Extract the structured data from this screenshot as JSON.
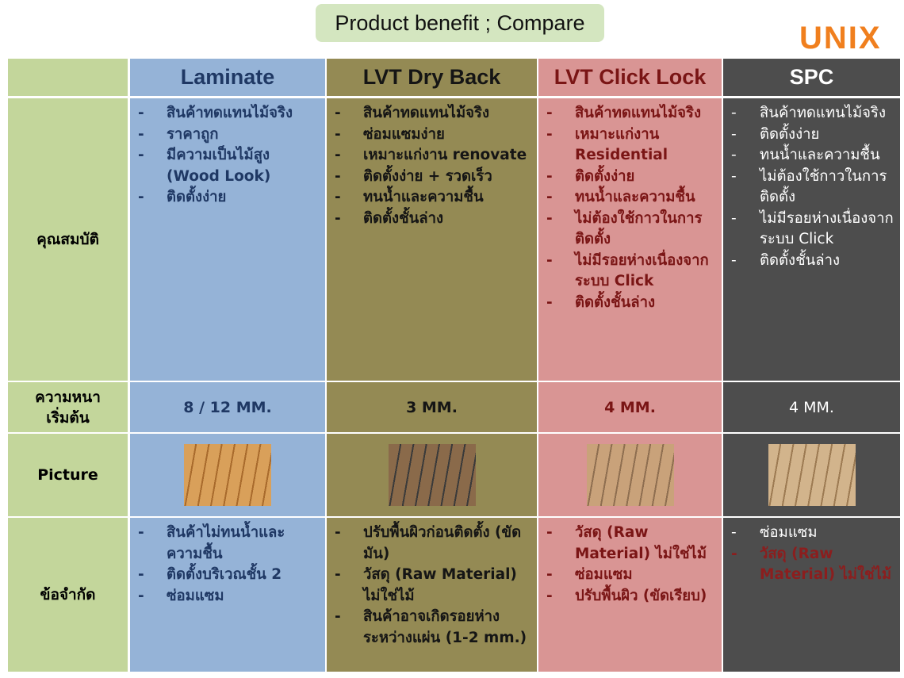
{
  "header": {
    "title": "Product benefit ; Compare",
    "logo": "UNIX"
  },
  "table": {
    "columns": [
      "Laminate",
      "LVT Dry Back",
      "LVT Click Lock",
      "SPC"
    ],
    "rows": [
      {
        "label": "คุณสมบัติ",
        "cells": [
          [
            "สินค้าทดแทนไม้จริง",
            "ราคาถูก",
            "มีความเป็นไม้สูง (Wood Look)",
            "ติดตั้งง่าย"
          ],
          [
            "สินค้าทดแทนไม้จริง",
            "ซ่อมแซมง่าย",
            "เหมาะแก่งาน renovate",
            "ติดตั้งง่าย + รวดเร็ว",
            "ทนน้ำและความชื้น",
            "ติดตั้งชั้นล่าง"
          ],
          [
            "สินค้าทดแทนไม้จริง",
            "เหมาะแก่งาน Residential",
            "ติดตั้งง่าย",
            "ทนน้ำและความชื้น",
            "ไม่ต้องใช้กาวในการติดตั้ง",
            "ไม่มีรอยห่างเนื่องจากระบบ Click",
            "ติดตั้งชั้นล่าง"
          ],
          [
            "สินค้าทดแทนไม้จริง",
            "ติดตั้งง่าย",
            "ทนน้ำและความชื้น",
            "ไม่ต้องใช้กาวในการติดตั้ง",
            "ไม่มีรอยห่างเนื่องจากระบบ Click",
            "ติดตั้งชั้นล่าง"
          ]
        ]
      },
      {
        "label": "ความหนา\nเริ่มต้น",
        "cells": [
          "8 / 12 MM.",
          "3 MM.",
          "4 MM.",
          "4 MM."
        ]
      },
      {
        "label": "Picture"
      },
      {
        "label": "ข้อจำกัด",
        "cells": [
          [
            "สินค้าไม่ทนน้ำและความชื้น",
            "ติดตั้งบริเวณชั้น 2",
            "ซ่อมแซม"
          ],
          [
            "ปรับพื้นผิวก่อนติดตั้ง (ขัดมัน)",
            "วัสดุ (Raw Material) ไม่ใช่ไม้",
            "สินค้าอาจเกิดรอยห่างระหว่างแผ่น (1-2 mm.)"
          ],
          [
            "วัสดุ (Raw Material) ไม่ใช่ไม้",
            "ซ่อมแซม",
            "ปรับพื้นผิว (ขัดเรียบ)"
          ],
          [
            "ซ่อมแซม",
            "วัสดุ (Raw Material) ไม่ใช่ไม้"
          ]
        ]
      }
    ]
  }
}
